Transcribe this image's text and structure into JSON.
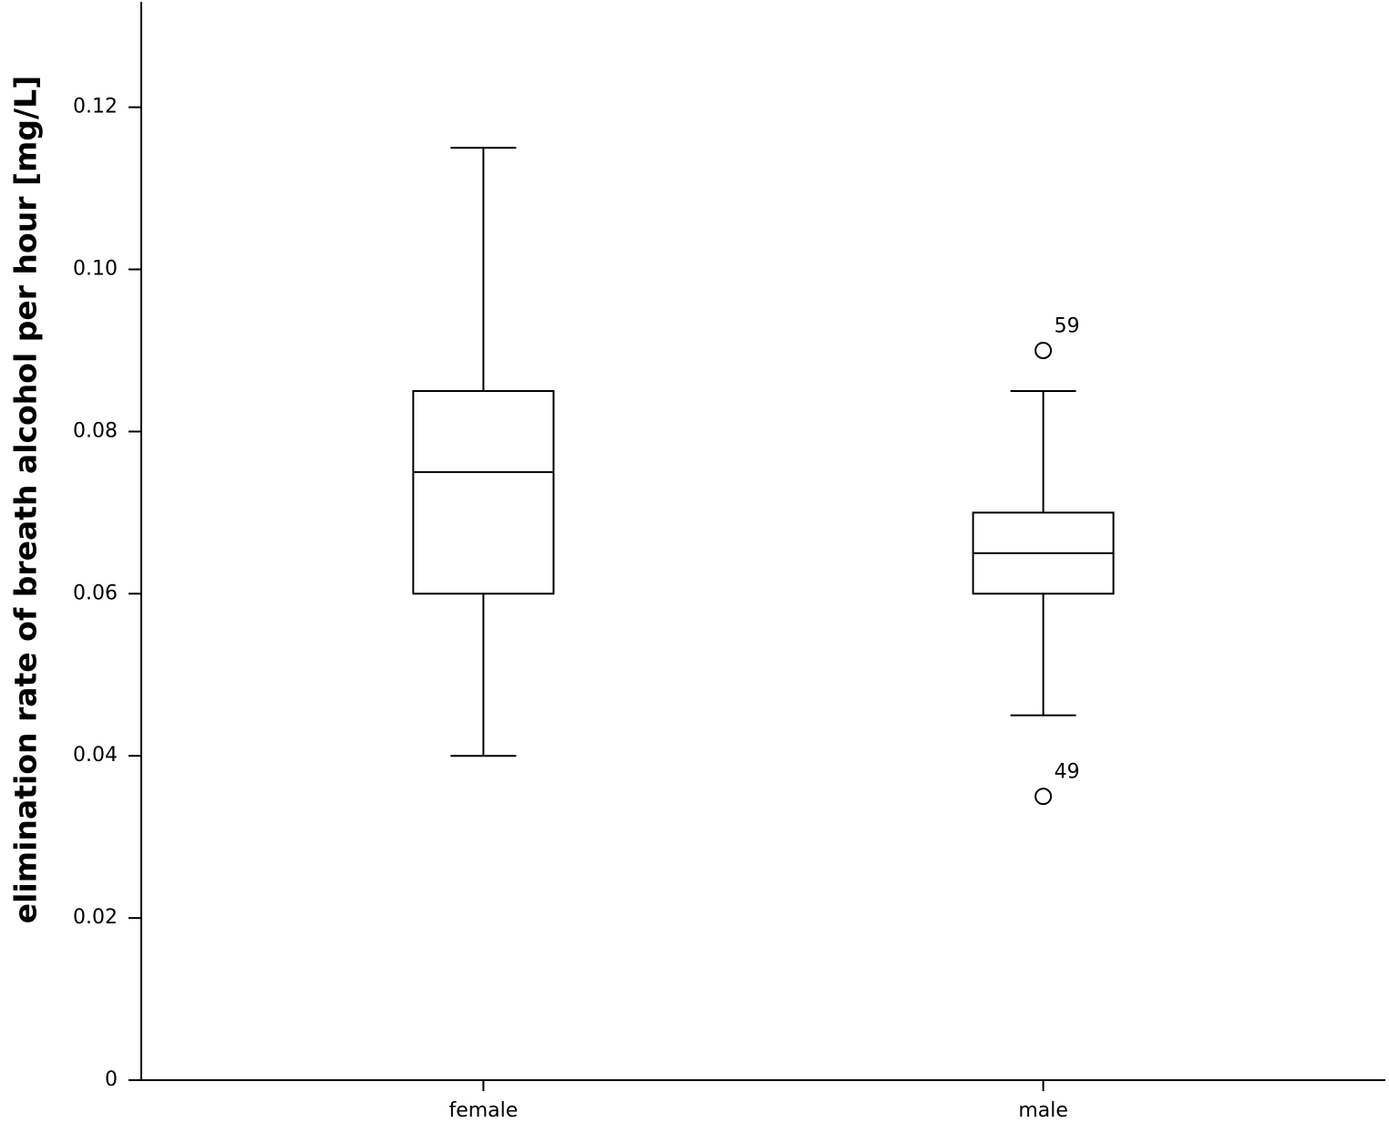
{
  "chart_data": {
    "type": "box",
    "y_label": "elimination rate of breath alcohol per hour [mg/L]",
    "categories": [
      "female",
      "male"
    ],
    "boxes": [
      {
        "low": 0.04,
        "q1": 0.06,
        "median": 0.075,
        "q3": 0.085,
        "high": 0.115,
        "outliers": []
      },
      {
        "low": 0.045,
        "q1": 0.06,
        "median": 0.065,
        "q3": 0.07,
        "high": 0.085,
        "outliers": [
          {
            "value": 0.09,
            "label": "59"
          },
          {
            "value": 0.035,
            "label": "49"
          }
        ]
      }
    ],
    "ylim": [
      0,
      0.133
    ],
    "yticks": [
      0,
      0.02,
      0.04,
      0.06,
      0.08,
      {
        "value": 0.1,
        "label": "0.10"
      },
      0.12
    ],
    "color": "#000000"
  }
}
